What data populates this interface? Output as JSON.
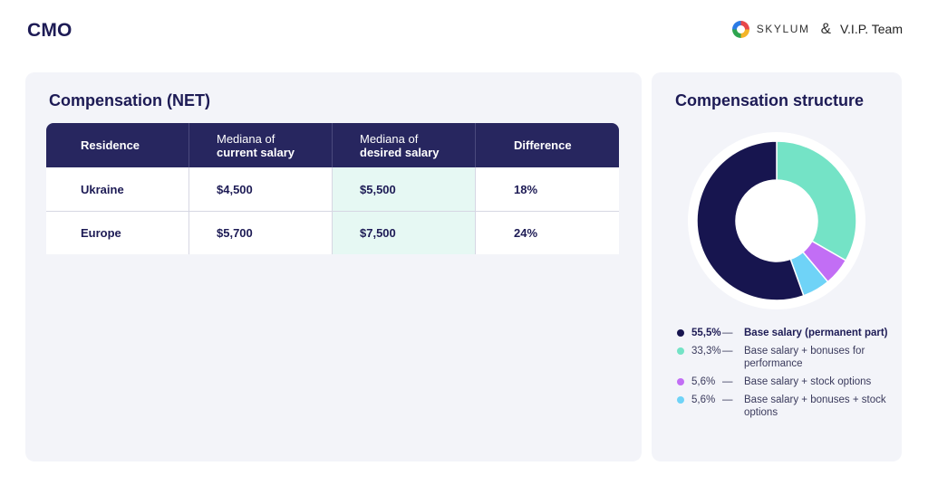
{
  "page_title": "CMO",
  "brand": {
    "skylum": "SKYLUM",
    "amp": "&",
    "vip": "V.I.P. Team"
  },
  "compensation": {
    "title": "Compensation (NET)",
    "headers": [
      {
        "light": "",
        "bold": "Residence"
      },
      {
        "light": "Mediana of",
        "bold": "current salary"
      },
      {
        "light": "Mediana of",
        "bold": "desired salary"
      },
      {
        "light": "",
        "bold": "Difference"
      }
    ],
    "rows": [
      {
        "residence": "Ukraine",
        "current": "$4,500",
        "desired": "$5,500",
        "difference": "18%"
      },
      {
        "residence": "Europe",
        "current": "$5,700",
        "desired": "$7,500",
        "difference": "24%"
      }
    ]
  },
  "structure": {
    "title": "Compensation structure",
    "chart_data": {
      "type": "pie",
      "slices": [
        {
          "pct": "55,5%",
          "value": 55.5,
          "label": "Base salary (permanent part)",
          "color": "#17154f"
        },
        {
          "pct": "33,3%",
          "value": 33.3,
          "label": "Base salary + bonuses for performance",
          "color": "#74e3c6"
        },
        {
          "pct": "5,6%",
          "value": 5.6,
          "label": "Base salary + stock options",
          "color": "#c26ef5"
        },
        {
          "pct": "5,6%",
          "value": 5.6,
          "label": "Base salary + bonuses + stock options",
          "color": "#6fd3f7"
        }
      ]
    },
    "legend_lines": [
      {
        "pct": "55,5%",
        "dash": "—",
        "label": "Base salary (permanent part)"
      },
      {
        "pct": "33,3%",
        "dash": "—",
        "label": "Base salary + bonuses for performance"
      },
      {
        "pct": "5,6%",
        "dash": "—",
        "label": "Base salary + stock options"
      },
      {
        "pct": "5,6%",
        "dash": "—",
        "label": "Base salary + bonuses + stock options"
      }
    ]
  }
}
